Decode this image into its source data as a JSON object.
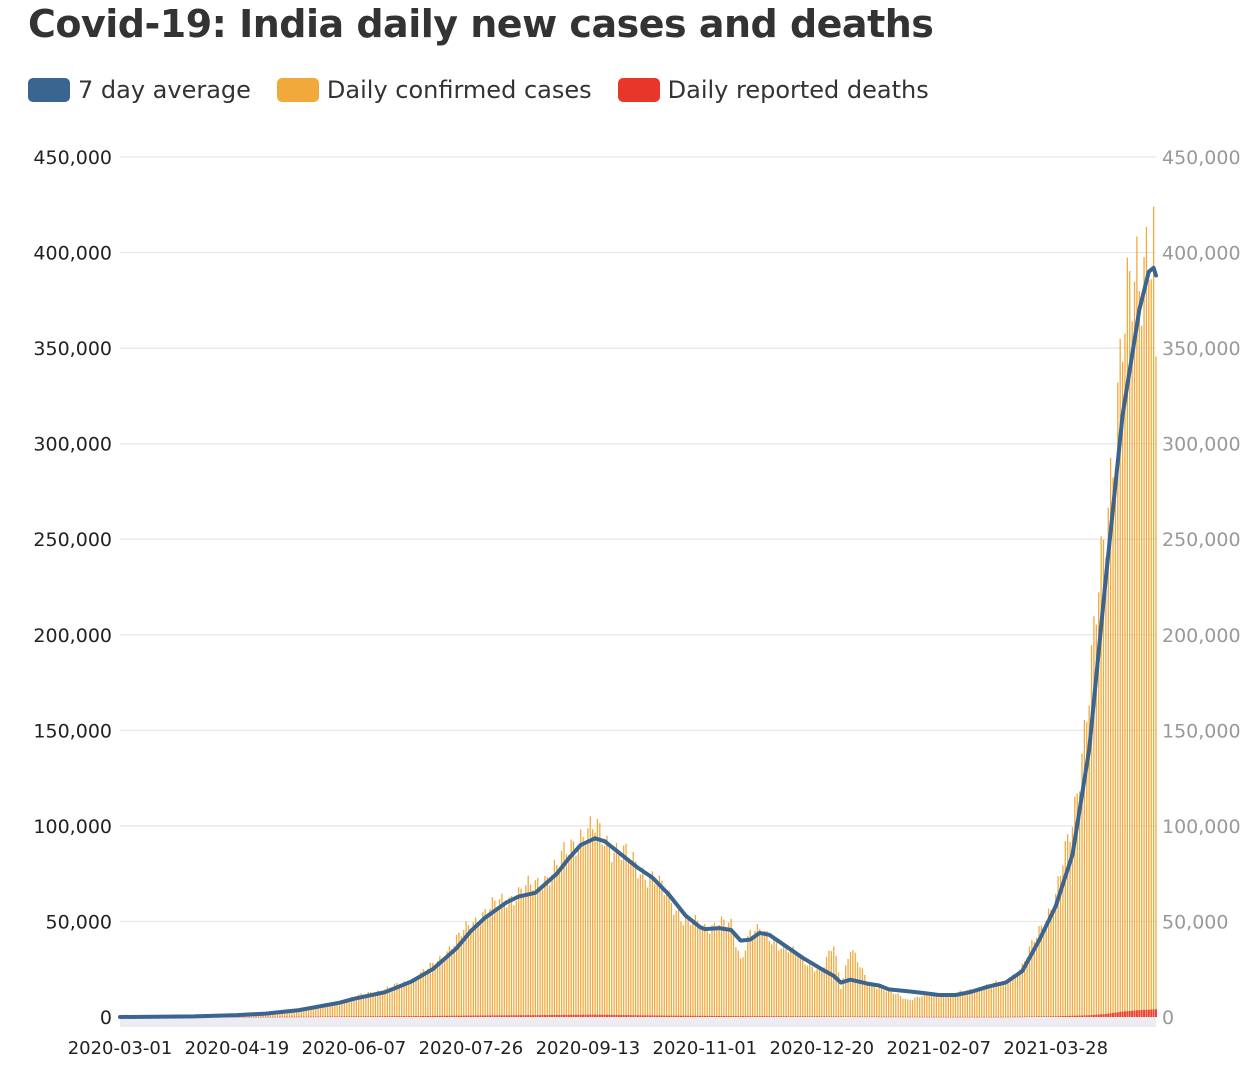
{
  "chart_data": {
    "type": "bar",
    "title": "Covid-19: India daily new cases and deaths",
    "legend_position": "top-left",
    "grid": true,
    "ylim": [
      0,
      450000
    ],
    "y_ticks": [
      0,
      50000,
      100000,
      150000,
      200000,
      250000,
      300000,
      350000,
      400000,
      450000
    ],
    "y_tick_labels": [
      "0",
      "50,000",
      "100,000",
      "150,000",
      "200,000",
      "250,000",
      "300,000",
      "350,000",
      "400,000",
      "450,000"
    ],
    "x_range": [
      "2020-03-01",
      "2021-05-09"
    ],
    "x_ticks": [
      "2020-03-01",
      "2020-04-19",
      "2020-06-07",
      "2020-07-26",
      "2020-09-13",
      "2020-11-01",
      "2020-12-20",
      "2021-02-07",
      "2021-03-28"
    ],
    "series": [
      {
        "name": "7 day average",
        "kind": "line",
        "color": "#3a6590",
        "points": [
          [
            "2020-03-01",
            0
          ],
          [
            "2020-04-01",
            300
          ],
          [
            "2020-04-19",
            1000
          ],
          [
            "2020-05-01",
            1800
          ],
          [
            "2020-05-15",
            3600
          ],
          [
            "2020-06-01",
            7500
          ],
          [
            "2020-06-07",
            9500
          ],
          [
            "2020-06-20",
            13000
          ],
          [
            "2020-07-01",
            18500
          ],
          [
            "2020-07-10",
            25000
          ],
          [
            "2020-07-20",
            36000
          ],
          [
            "2020-07-26",
            45000
          ],
          [
            "2020-08-01",
            52000
          ],
          [
            "2020-08-10",
            60000
          ],
          [
            "2020-08-15",
            63000
          ],
          [
            "2020-08-22",
            65000
          ],
          [
            "2020-08-31",
            75000
          ],
          [
            "2020-09-05",
            83000
          ],
          [
            "2020-09-10",
            90000
          ],
          [
            "2020-09-16",
            93500
          ],
          [
            "2020-09-20",
            92000
          ],
          [
            "2020-09-27",
            85000
          ],
          [
            "2020-10-04",
            78000
          ],
          [
            "2020-10-10",
            73000
          ],
          [
            "2020-10-17",
            64000
          ],
          [
            "2020-10-24",
            53000
          ],
          [
            "2020-10-30",
            47000
          ],
          [
            "2020-11-01",
            46000
          ],
          [
            "2020-11-07",
            46500
          ],
          [
            "2020-11-12",
            45500
          ],
          [
            "2020-11-16",
            40000
          ],
          [
            "2020-11-20",
            40500
          ],
          [
            "2020-11-24",
            44000
          ],
          [
            "2020-11-28",
            43000
          ],
          [
            "2020-12-05",
            37000
          ],
          [
            "2020-12-12",
            31000
          ],
          [
            "2020-12-20",
            25000
          ],
          [
            "2020-12-25",
            21500
          ],
          [
            "2020-12-28",
            18000
          ],
          [
            "2021-01-01",
            19500
          ],
          [
            "2021-01-08",
            17500
          ],
          [
            "2021-01-13",
            16500
          ],
          [
            "2021-01-17",
            14500
          ],
          [
            "2021-01-25",
            13500
          ],
          [
            "2021-02-01",
            12500
          ],
          [
            "2021-02-07",
            11500
          ],
          [
            "2021-02-14",
            11500
          ],
          [
            "2021-02-20",
            13000
          ],
          [
            "2021-02-28",
            16000
          ],
          [
            "2021-03-07",
            18000
          ],
          [
            "2021-03-14",
            24000
          ],
          [
            "2021-03-21",
            40000
          ],
          [
            "2021-03-28",
            58000
          ],
          [
            "2021-04-04",
            85000
          ],
          [
            "2021-04-11",
            140000
          ],
          [
            "2021-04-18",
            230000
          ],
          [
            "2021-04-25",
            315000
          ],
          [
            "2021-05-02",
            370000
          ],
          [
            "2021-05-06",
            390000
          ],
          [
            "2021-05-08",
            392000
          ],
          [
            "2021-05-09",
            388000
          ]
        ]
      },
      {
        "name": "Daily confirmed cases",
        "kind": "bar",
        "color": "#f2a93b",
        "points": [
          [
            "2020-03-01",
            0
          ],
          [
            "2020-04-01",
            400
          ],
          [
            "2020-04-19",
            1300
          ],
          [
            "2020-05-01",
            2000
          ],
          [
            "2020-05-15",
            4000
          ],
          [
            "2020-06-01",
            8000
          ],
          [
            "2020-06-07",
            10500
          ],
          [
            "2020-06-20",
            14500
          ],
          [
            "2020-07-01",
            19000
          ],
          [
            "2020-07-10",
            27000
          ],
          [
            "2020-07-20",
            40000
          ],
          [
            "2020-07-26",
            49000
          ],
          [
            "2020-08-01",
            55000
          ],
          [
            "2020-08-10",
            62000
          ],
          [
            "2020-08-15",
            65000
          ],
          [
            "2020-08-22",
            69000
          ],
          [
            "2020-08-31",
            78000
          ],
          [
            "2020-09-05",
            88000
          ],
          [
            "2020-09-10",
            96000
          ],
          [
            "2020-09-16",
            97500
          ],
          [
            "2020-09-20",
            93000
          ],
          [
            "2020-09-27",
            86000
          ],
          [
            "2020-10-04",
            78000
          ],
          [
            "2020-10-10",
            73000
          ],
          [
            "2020-10-17",
            62000
          ],
          [
            "2020-10-24",
            50000
          ],
          [
            "2020-10-30",
            48000
          ],
          [
            "2020-11-01",
            46500
          ],
          [
            "2020-11-07",
            50000
          ],
          [
            "2020-11-12",
            47000
          ],
          [
            "2020-11-16",
            30000
          ],
          [
            "2020-11-20",
            45500
          ],
          [
            "2020-11-24",
            44500
          ],
          [
            "2020-11-28",
            41000
          ],
          [
            "2020-12-05",
            36500
          ],
          [
            "2020-12-12",
            30000
          ],
          [
            "2020-12-20",
            24000
          ],
          [
            "2020-12-25",
            37500
          ],
          [
            "2020-12-28",
            16000
          ],
          [
            "2021-01-01",
            37000
          ],
          [
            "2021-01-08",
            18000
          ],
          [
            "2021-01-13",
            16000
          ],
          [
            "2021-01-17",
            13500
          ],
          [
            "2021-01-25",
            9000
          ],
          [
            "2021-02-01",
            11500
          ],
          [
            "2021-02-07",
            11000
          ],
          [
            "2021-02-14",
            12000
          ],
          [
            "2021-02-20",
            14000
          ],
          [
            "2021-02-28",
            16500
          ],
          [
            "2021-03-07",
            18500
          ],
          [
            "2021-03-14",
            26000
          ],
          [
            "2021-03-21",
            46000
          ],
          [
            "2021-03-28",
            62000
          ],
          [
            "2021-04-04",
            103000
          ],
          [
            "2021-04-11",
            168000
          ],
          [
            "2021-04-18",
            261000
          ],
          [
            "2021-04-25",
            352000
          ],
          [
            "2021-05-02",
            392000
          ],
          [
            "2021-05-06",
            414000
          ],
          [
            "2021-05-08",
            403000
          ],
          [
            "2021-05-09",
            330000
          ]
        ]
      },
      {
        "name": "Daily reported deaths",
        "kind": "bar",
        "color": "#e8372a",
        "points": [
          [
            "2020-03-01",
            0
          ],
          [
            "2020-05-01",
            80
          ],
          [
            "2020-06-07",
            300
          ],
          [
            "2020-07-01",
            450
          ],
          [
            "2020-08-01",
            800
          ],
          [
            "2020-09-16",
            1200
          ],
          [
            "2020-10-17",
            700
          ],
          [
            "2020-11-16",
            450
          ],
          [
            "2020-12-20",
            300
          ],
          [
            "2021-02-07",
            90
          ],
          [
            "2021-03-07",
            120
          ],
          [
            "2021-03-28",
            350
          ],
          [
            "2021-04-11",
            900
          ],
          [
            "2021-04-18",
            1600
          ],
          [
            "2021-04-25",
            2800
          ],
          [
            "2021-05-02",
            3600
          ],
          [
            "2021-05-09",
            4000
          ]
        ]
      }
    ]
  }
}
